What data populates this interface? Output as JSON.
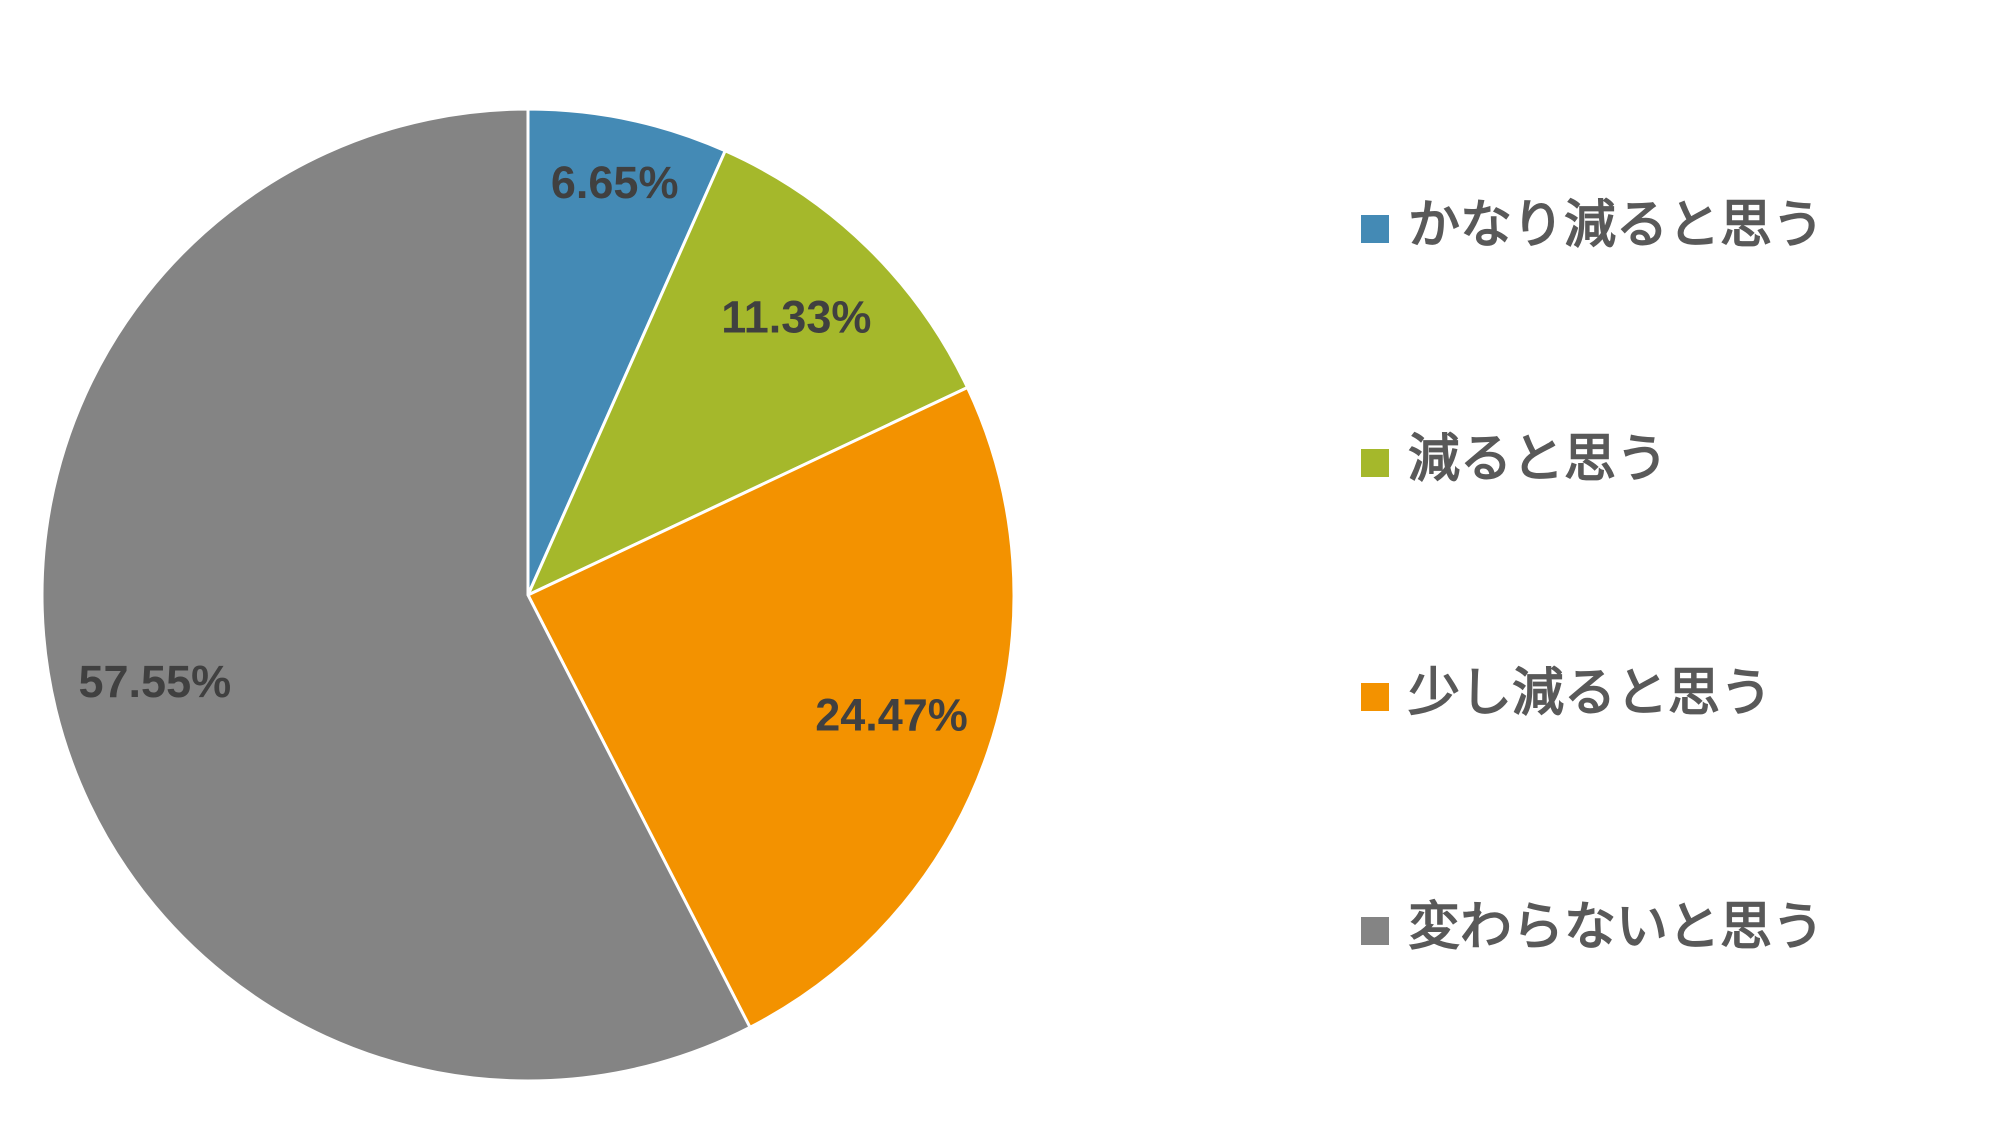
{
  "chart_data": {
    "type": "pie",
    "categories": [
      "かなり減ると思う",
      "減ると思う",
      "少し減ると思う",
      "変わらないと思う"
    ],
    "values": [
      6.65,
      11.33,
      24.47,
      57.55
    ],
    "value_labels": [
      "6.65%",
      "11.33%",
      "24.47%",
      "57.55%"
    ],
    "colors": [
      "#448ab5",
      "#a5b82b",
      "#f39200",
      "#848484"
    ],
    "legend": "right"
  }
}
